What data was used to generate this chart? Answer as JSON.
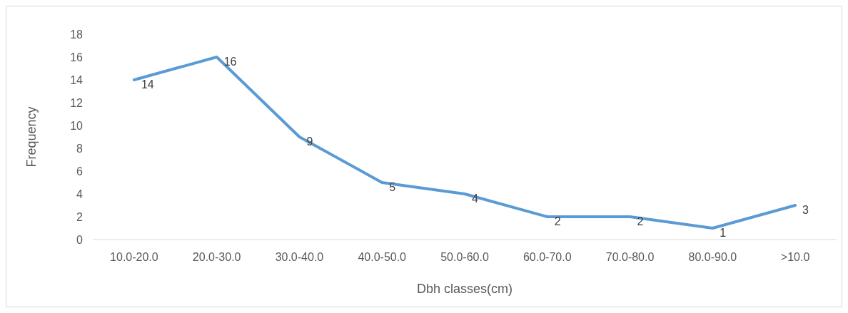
{
  "chart_data": {
    "type": "line",
    "xlabel": "Dbh classes(cm)",
    "ylabel": "Frequency",
    "categories": [
      "10.0-20.0",
      "20.0-30.0",
      "30.0-40.0",
      "40.0-50.0",
      "50.0-60.0",
      "60.0-70.0",
      "70.0-80.0",
      "80.0-90.0",
      ">10.0"
    ],
    "series": [
      {
        "color": "#5b9bd5",
        "values": [
          14,
          16,
          9,
          5,
          4,
          2,
          2,
          1,
          3
        ]
      }
    ],
    "ylim": [
      0,
      18
    ],
    "yticks": [
      0,
      2,
      4,
      6,
      8,
      10,
      12,
      14,
      16,
      18
    ],
    "data_labels": true,
    "marker": "none",
    "line_style": "solid"
  }
}
